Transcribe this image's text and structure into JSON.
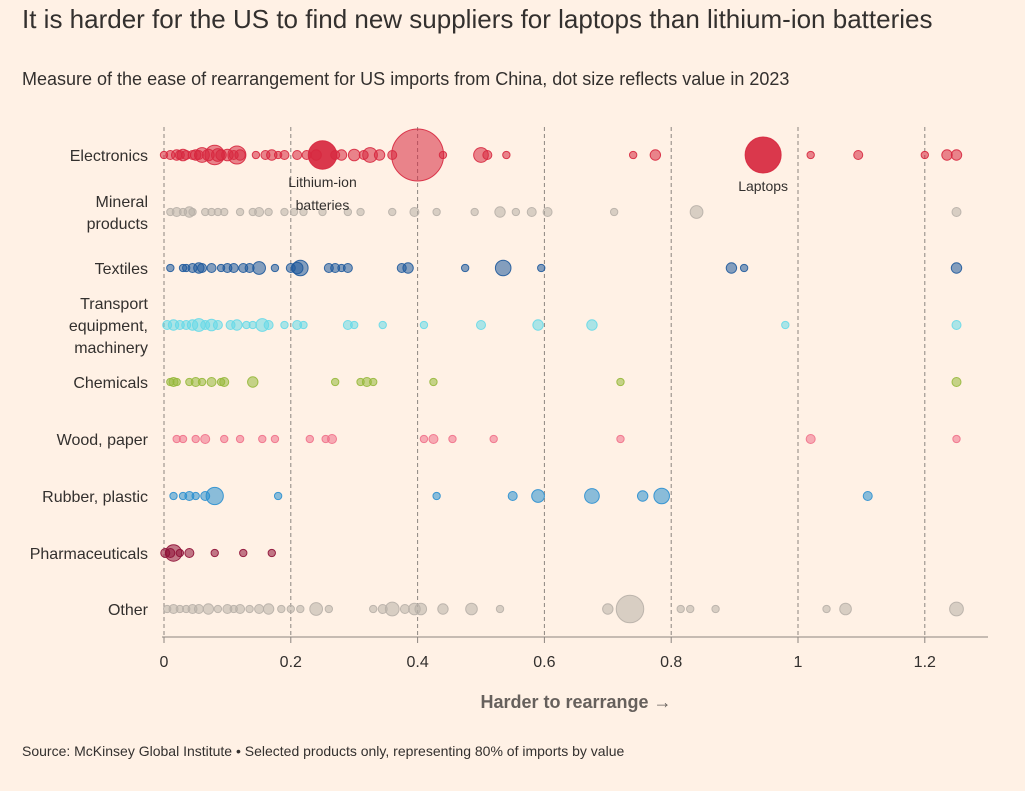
{
  "title": "It is harder for the US to find new suppliers for laptops than lithium-ion batteries",
  "subtitle": "Measure of the ease of rearrangement for US imports from China, dot size reflects value in 2023",
  "source": "Source: McKinsey Global Institute • Selected products only, representing 80% of imports by value",
  "chart_data": {
    "type": "scatter",
    "xlabel": "Harder to rearrange →",
    "xlim": [
      0,
      1.3
    ],
    "xticks": [
      0,
      0.2,
      0.4,
      0.6,
      0.8,
      1,
      1.2
    ],
    "xtick_labels": [
      "0",
      "0.2",
      "0.4",
      "0.6",
      "0.8",
      "1",
      "1.2"
    ],
    "size_variable": "import value in 2023 (relative)",
    "categories": [
      "Electronics",
      "Mineral products",
      "Textiles",
      "Transport equipment, machinery",
      "Chemicals",
      "Wood, paper",
      "Rubber, plastic",
      "Pharmaceuticals",
      "Other"
    ],
    "series": [
      {
        "name": "Electronics",
        "label_lines": [
          "Electronics"
        ],
        "color": "#d7283f",
        "points": [
          {
            "x": 0.0,
            "s": 2
          },
          {
            "x": 0.01,
            "s": 3
          },
          {
            "x": 0.02,
            "s": 4
          },
          {
            "x": 0.025,
            "s": 3
          },
          {
            "x": 0.03,
            "s": 5
          },
          {
            "x": 0.035,
            "s": 3
          },
          {
            "x": 0.045,
            "s": 3
          },
          {
            "x": 0.05,
            "s": 4
          },
          {
            "x": 0.055,
            "s": 3
          },
          {
            "x": 0.06,
            "s": 8
          },
          {
            "x": 0.07,
            "s": 5
          },
          {
            "x": 0.08,
            "s": 14
          },
          {
            "x": 0.085,
            "s": 6
          },
          {
            "x": 0.09,
            "s": 4
          },
          {
            "x": 0.1,
            "s": 5
          },
          {
            "x": 0.11,
            "s": 3
          },
          {
            "x": 0.115,
            "s": 12
          },
          {
            "x": 0.12,
            "s": 4
          },
          {
            "x": 0.145,
            "s": 2
          },
          {
            "x": 0.16,
            "s": 3
          },
          {
            "x": 0.17,
            "s": 4
          },
          {
            "x": 0.18,
            "s": 2
          },
          {
            "x": 0.19,
            "s": 3
          },
          {
            "x": 0.21,
            "s": 3
          },
          {
            "x": 0.225,
            "s": 3
          },
          {
            "x": 0.24,
            "s": 4
          },
          {
            "x": 0.25,
            "s": 30,
            "label": "Lithium-ion batteries",
            "label_lines": [
              "Lithium-ion",
              "batteries"
            ]
          },
          {
            "x": 0.27,
            "s": 3
          },
          {
            "x": 0.28,
            "s": 4
          },
          {
            "x": 0.3,
            "s": 5
          },
          {
            "x": 0.315,
            "s": 3
          },
          {
            "x": 0.325,
            "s": 8
          },
          {
            "x": 0.34,
            "s": 4
          },
          {
            "x": 0.36,
            "s": 3
          },
          {
            "x": 0.4,
            "s": 100
          },
          {
            "x": 0.44,
            "s": 2
          },
          {
            "x": 0.5,
            "s": 8
          },
          {
            "x": 0.51,
            "s": 3
          },
          {
            "x": 0.54,
            "s": 2
          },
          {
            "x": 0.74,
            "s": 2
          },
          {
            "x": 0.775,
            "s": 4
          },
          {
            "x": 0.945,
            "s": 48,
            "label": "Laptops",
            "label_lines": [
              "Laptops"
            ]
          },
          {
            "x": 1.02,
            "s": 2
          },
          {
            "x": 1.095,
            "s": 3
          },
          {
            "x": 1.2,
            "s": 2
          },
          {
            "x": 1.235,
            "s": 4
          },
          {
            "x": 1.25,
            "s": 4
          }
        ]
      },
      {
        "name": "Mineral products",
        "label_lines": [
          "Mineral",
          "products"
        ],
        "color": "#b8b0a8",
        "points": [
          {
            "x": 0.01,
            "s": 2
          },
          {
            "x": 0.02,
            "s": 3
          },
          {
            "x": 0.03,
            "s": 2
          },
          {
            "x": 0.04,
            "s": 4
          },
          {
            "x": 0.045,
            "s": 2
          },
          {
            "x": 0.065,
            "s": 2
          },
          {
            "x": 0.075,
            "s": 2
          },
          {
            "x": 0.085,
            "s": 2
          },
          {
            "x": 0.095,
            "s": 2
          },
          {
            "x": 0.12,
            "s": 2
          },
          {
            "x": 0.14,
            "s": 2
          },
          {
            "x": 0.15,
            "s": 3
          },
          {
            "x": 0.165,
            "s": 2
          },
          {
            "x": 0.19,
            "s": 2
          },
          {
            "x": 0.205,
            "s": 2
          },
          {
            "x": 0.22,
            "s": 2
          },
          {
            "x": 0.25,
            "s": 2
          },
          {
            "x": 0.29,
            "s": 2
          },
          {
            "x": 0.31,
            "s": 2
          },
          {
            "x": 0.36,
            "s": 2
          },
          {
            "x": 0.395,
            "s": 3
          },
          {
            "x": 0.43,
            "s": 2
          },
          {
            "x": 0.49,
            "s": 2
          },
          {
            "x": 0.53,
            "s": 4
          },
          {
            "x": 0.555,
            "s": 2
          },
          {
            "x": 0.58,
            "s": 3
          },
          {
            "x": 0.605,
            "s": 3
          },
          {
            "x": 0.71,
            "s": 2
          },
          {
            "x": 0.84,
            "s": 6
          },
          {
            "x": 1.25,
            "s": 3
          }
        ]
      },
      {
        "name": "Textiles",
        "label_lines": [
          "Textiles"
        ],
        "color": "#1f5a9c",
        "points": [
          {
            "x": 0.01,
            "s": 2
          },
          {
            "x": 0.03,
            "s": 2
          },
          {
            "x": 0.035,
            "s": 2
          },
          {
            "x": 0.045,
            "s": 3
          },
          {
            "x": 0.055,
            "s": 4
          },
          {
            "x": 0.06,
            "s": 3
          },
          {
            "x": 0.075,
            "s": 3
          },
          {
            "x": 0.09,
            "s": 2
          },
          {
            "x": 0.1,
            "s": 3
          },
          {
            "x": 0.11,
            "s": 3
          },
          {
            "x": 0.125,
            "s": 3
          },
          {
            "x": 0.135,
            "s": 3
          },
          {
            "x": 0.15,
            "s": 6
          },
          {
            "x": 0.175,
            "s": 2
          },
          {
            "x": 0.2,
            "s": 3
          },
          {
            "x": 0.21,
            "s": 5
          },
          {
            "x": 0.215,
            "s": 9
          },
          {
            "x": 0.26,
            "s": 3
          },
          {
            "x": 0.27,
            "s": 3
          },
          {
            "x": 0.28,
            "s": 2
          },
          {
            "x": 0.29,
            "s": 3
          },
          {
            "x": 0.375,
            "s": 3
          },
          {
            "x": 0.385,
            "s": 4
          },
          {
            "x": 0.475,
            "s": 2
          },
          {
            "x": 0.535,
            "s": 9
          },
          {
            "x": 0.595,
            "s": 2
          },
          {
            "x": 0.895,
            "s": 4
          },
          {
            "x": 0.915,
            "s": 2
          },
          {
            "x": 1.25,
            "s": 4
          }
        ]
      },
      {
        "name": "Transport equipment, machinery",
        "label_lines": [
          "Transport",
          "equipment,",
          "machinery"
        ],
        "color": "#66d9e8",
        "points": [
          {
            "x": 0.005,
            "s": 3
          },
          {
            "x": 0.015,
            "s": 4
          },
          {
            "x": 0.025,
            "s": 3
          },
          {
            "x": 0.035,
            "s": 3
          },
          {
            "x": 0.045,
            "s": 4
          },
          {
            "x": 0.055,
            "s": 6
          },
          {
            "x": 0.065,
            "s": 3
          },
          {
            "x": 0.075,
            "s": 5
          },
          {
            "x": 0.085,
            "s": 3
          },
          {
            "x": 0.105,
            "s": 3
          },
          {
            "x": 0.115,
            "s": 4
          },
          {
            "x": 0.13,
            "s": 2
          },
          {
            "x": 0.14,
            "s": 2
          },
          {
            "x": 0.155,
            "s": 6
          },
          {
            "x": 0.165,
            "s": 3
          },
          {
            "x": 0.19,
            "s": 2
          },
          {
            "x": 0.21,
            "s": 3
          },
          {
            "x": 0.22,
            "s": 2
          },
          {
            "x": 0.29,
            "s": 3
          },
          {
            "x": 0.3,
            "s": 2
          },
          {
            "x": 0.345,
            "s": 2
          },
          {
            "x": 0.41,
            "s": 2
          },
          {
            "x": 0.5,
            "s": 3
          },
          {
            "x": 0.59,
            "s": 4
          },
          {
            "x": 0.675,
            "s": 4
          },
          {
            "x": 0.98,
            "s": 2
          },
          {
            "x": 1.25,
            "s": 3
          }
        ]
      },
      {
        "name": "Chemicals",
        "label_lines": [
          "Chemicals"
        ],
        "color": "#96b83b",
        "points": [
          {
            "x": 0.01,
            "s": 2
          },
          {
            "x": 0.015,
            "s": 3
          },
          {
            "x": 0.02,
            "s": 2
          },
          {
            "x": 0.04,
            "s": 2
          },
          {
            "x": 0.05,
            "s": 3
          },
          {
            "x": 0.06,
            "s": 2
          },
          {
            "x": 0.075,
            "s": 3
          },
          {
            "x": 0.09,
            "s": 2
          },
          {
            "x": 0.095,
            "s": 3
          },
          {
            "x": 0.14,
            "s": 4
          },
          {
            "x": 0.27,
            "s": 2
          },
          {
            "x": 0.31,
            "s": 2
          },
          {
            "x": 0.32,
            "s": 3
          },
          {
            "x": 0.33,
            "s": 2
          },
          {
            "x": 0.425,
            "s": 2
          },
          {
            "x": 0.72,
            "s": 2
          },
          {
            "x": 1.25,
            "s": 3
          }
        ]
      },
      {
        "name": "Wood, paper",
        "label_lines": [
          "Wood, paper"
        ],
        "color": "#f0708a",
        "points": [
          {
            "x": 0.02,
            "s": 2
          },
          {
            "x": 0.03,
            "s": 2
          },
          {
            "x": 0.05,
            "s": 2
          },
          {
            "x": 0.065,
            "s": 3
          },
          {
            "x": 0.095,
            "s": 2
          },
          {
            "x": 0.12,
            "s": 2
          },
          {
            "x": 0.155,
            "s": 2
          },
          {
            "x": 0.175,
            "s": 2
          },
          {
            "x": 0.23,
            "s": 2
          },
          {
            "x": 0.255,
            "s": 2
          },
          {
            "x": 0.265,
            "s": 3
          },
          {
            "x": 0.41,
            "s": 2
          },
          {
            "x": 0.425,
            "s": 3
          },
          {
            "x": 0.455,
            "s": 2
          },
          {
            "x": 0.52,
            "s": 2
          },
          {
            "x": 0.72,
            "s": 2
          },
          {
            "x": 1.02,
            "s": 3
          },
          {
            "x": 1.25,
            "s": 2
          }
        ]
      },
      {
        "name": "Rubber, plastic",
        "label_lines": [
          "Rubber, plastic"
        ],
        "color": "#2a8fd0",
        "points": [
          {
            "x": 0.015,
            "s": 2
          },
          {
            "x": 0.03,
            "s": 2
          },
          {
            "x": 0.04,
            "s": 3
          },
          {
            "x": 0.05,
            "s": 2
          },
          {
            "x": 0.065,
            "s": 3
          },
          {
            "x": 0.08,
            "s": 11
          },
          {
            "x": 0.18,
            "s": 2
          },
          {
            "x": 0.43,
            "s": 2
          },
          {
            "x": 0.55,
            "s": 3
          },
          {
            "x": 0.59,
            "s": 6
          },
          {
            "x": 0.675,
            "s": 8
          },
          {
            "x": 0.755,
            "s": 4
          },
          {
            "x": 0.785,
            "s": 9
          },
          {
            "x": 1.11,
            "s": 3
          }
        ]
      },
      {
        "name": "Pharmaceuticals",
        "label_lines": [
          "Pharmaceuticals"
        ],
        "color": "#8e1036",
        "points": [
          {
            "x": 0.002,
            "s": 3
          },
          {
            "x": 0.01,
            "s": 3
          },
          {
            "x": 0.015,
            "s": 10
          },
          {
            "x": 0.025,
            "s": 2
          },
          {
            "x": 0.04,
            "s": 3
          },
          {
            "x": 0.08,
            "s": 2
          },
          {
            "x": 0.125,
            "s": 2
          },
          {
            "x": 0.17,
            "s": 2
          }
        ]
      },
      {
        "name": "Other",
        "label_lines": [
          "Other"
        ],
        "color": "#b8b0a8",
        "points": [
          {
            "x": 0.005,
            "s": 2
          },
          {
            "x": 0.015,
            "s": 3
          },
          {
            "x": 0.025,
            "s": 2
          },
          {
            "x": 0.035,
            "s": 2
          },
          {
            "x": 0.045,
            "s": 3
          },
          {
            "x": 0.055,
            "s": 3
          },
          {
            "x": 0.07,
            "s": 4
          },
          {
            "x": 0.085,
            "s": 2
          },
          {
            "x": 0.1,
            "s": 3
          },
          {
            "x": 0.11,
            "s": 2
          },
          {
            "x": 0.12,
            "s": 3
          },
          {
            "x": 0.135,
            "s": 2
          },
          {
            "x": 0.15,
            "s": 3
          },
          {
            "x": 0.165,
            "s": 4
          },
          {
            "x": 0.185,
            "s": 2
          },
          {
            "x": 0.2,
            "s": 2
          },
          {
            "x": 0.215,
            "s": 2
          },
          {
            "x": 0.24,
            "s": 6
          },
          {
            "x": 0.26,
            "s": 2
          },
          {
            "x": 0.33,
            "s": 2
          },
          {
            "x": 0.345,
            "s": 3
          },
          {
            "x": 0.36,
            "s": 7
          },
          {
            "x": 0.38,
            "s": 3
          },
          {
            "x": 0.395,
            "s": 5
          },
          {
            "x": 0.405,
            "s": 5
          },
          {
            "x": 0.44,
            "s": 4
          },
          {
            "x": 0.485,
            "s": 5
          },
          {
            "x": 0.53,
            "s": 2
          },
          {
            "x": 0.7,
            "s": 4
          },
          {
            "x": 0.735,
            "s": 28
          },
          {
            "x": 0.815,
            "s": 2
          },
          {
            "x": 0.83,
            "s": 2
          },
          {
            "x": 0.87,
            "s": 2
          },
          {
            "x": 1.045,
            "s": 2
          },
          {
            "x": 1.075,
            "s": 5
          },
          {
            "x": 1.25,
            "s": 7
          }
        ]
      }
    ]
  }
}
